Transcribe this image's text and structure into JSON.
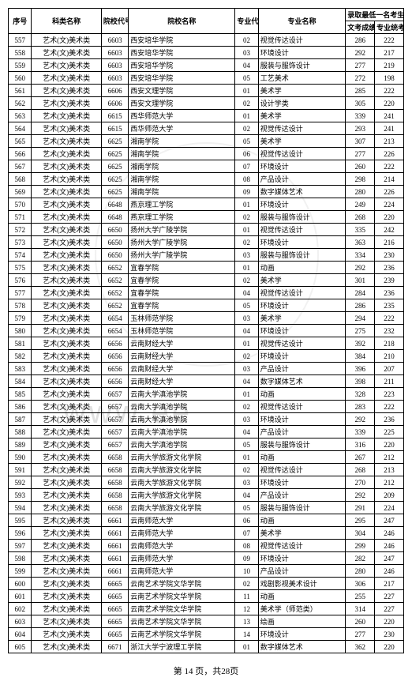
{
  "headers": {
    "seq": "序号",
    "category": "科类名称",
    "school_code": "院校代号",
    "school_name": "院校名称",
    "major_code": "专业代号",
    "major_name": "专业名称",
    "score_group": "录取最低一名考生",
    "score1": "文考成绩",
    "score2": "专业统考成绩"
  },
  "footer": "第 14 页，共28页",
  "category_label": "艺术(文)美术类",
  "rows": [
    {
      "seq": 557,
      "code": "6603",
      "school": "西安培华学院",
      "mcode": "02",
      "major": "视觉传达设计",
      "s1": 286,
      "s2": 222
    },
    {
      "seq": 558,
      "code": "6603",
      "school": "西安培华学院",
      "mcode": "03",
      "major": "环境设计",
      "s1": 292,
      "s2": 217
    },
    {
      "seq": 559,
      "code": "6603",
      "school": "西安培华学院",
      "mcode": "04",
      "major": "服装与服饰设计",
      "s1": 277,
      "s2": 219
    },
    {
      "seq": 560,
      "code": "6603",
      "school": "西安培华学院",
      "mcode": "05",
      "major": "工艺美术",
      "s1": 272,
      "s2": 198
    },
    {
      "seq": 561,
      "code": "6606",
      "school": "西安文理学院",
      "mcode": "01",
      "major": "美术学",
      "s1": 285,
      "s2": 222
    },
    {
      "seq": 562,
      "code": "6606",
      "school": "西安文理学院",
      "mcode": "02",
      "major": "设计学类",
      "s1": 305,
      "s2": 220
    },
    {
      "seq": 563,
      "code": "6615",
      "school": "西华师范大学",
      "mcode": "01",
      "major": "美术学",
      "s1": 339,
      "s2": 241
    },
    {
      "seq": 564,
      "code": "6615",
      "school": "西华师范大学",
      "mcode": "02",
      "major": "视觉传达设计",
      "s1": 293,
      "s2": 241
    },
    {
      "seq": 565,
      "code": "6625",
      "school": "湘南学院",
      "mcode": "05",
      "major": "美术学",
      "s1": 307,
      "s2": 213
    },
    {
      "seq": 566,
      "code": "6625",
      "school": "湘南学院",
      "mcode": "06",
      "major": "视觉传达设计",
      "s1": 277,
      "s2": 226
    },
    {
      "seq": 567,
      "code": "6625",
      "school": "湘南学院",
      "mcode": "07",
      "major": "环境设计",
      "s1": 260,
      "s2": 222
    },
    {
      "seq": 568,
      "code": "6625",
      "school": "湘南学院",
      "mcode": "08",
      "major": "产品设计",
      "s1": 298,
      "s2": 214
    },
    {
      "seq": 569,
      "code": "6625",
      "school": "湘南学院",
      "mcode": "09",
      "major": "数字媒体艺术",
      "s1": 280,
      "s2": 226
    },
    {
      "seq": 570,
      "code": "6648",
      "school": "燕京理工学院",
      "mcode": "01",
      "major": "环境设计",
      "s1": 249,
      "s2": 224
    },
    {
      "seq": 571,
      "code": "6648",
      "school": "燕京理工学院",
      "mcode": "02",
      "major": "服装与服饰设计",
      "s1": 268,
      "s2": 220
    },
    {
      "seq": 572,
      "code": "6650",
      "school": "扬州大学广陵学院",
      "mcode": "01",
      "major": "视觉传达设计",
      "s1": 335,
      "s2": 242
    },
    {
      "seq": 573,
      "code": "6650",
      "school": "扬州大学广陵学院",
      "mcode": "02",
      "major": "环境设计",
      "s1": 363,
      "s2": 216
    },
    {
      "seq": 574,
      "code": "6650",
      "school": "扬州大学广陵学院",
      "mcode": "03",
      "major": "服装与服饰设计",
      "s1": 334,
      "s2": 230
    },
    {
      "seq": 575,
      "code": "6652",
      "school": "宜春学院",
      "mcode": "01",
      "major": "动画",
      "s1": 292,
      "s2": 236
    },
    {
      "seq": 576,
      "code": "6652",
      "school": "宜春学院",
      "mcode": "02",
      "major": "美术学",
      "s1": 301,
      "s2": 239
    },
    {
      "seq": 577,
      "code": "6652",
      "school": "宜春学院",
      "mcode": "04",
      "major": "视觉传达设计",
      "s1": 284,
      "s2": 236
    },
    {
      "seq": 578,
      "code": "6652",
      "school": "宜春学院",
      "mcode": "05",
      "major": "环境设计",
      "s1": 286,
      "s2": 235
    },
    {
      "seq": 579,
      "code": "6654",
      "school": "玉林师范学院",
      "mcode": "03",
      "major": "美术学",
      "s1": 294,
      "s2": 222
    },
    {
      "seq": 580,
      "code": "6654",
      "school": "玉林师范学院",
      "mcode": "04",
      "major": "环境设计",
      "s1": 275,
      "s2": 232
    },
    {
      "seq": 581,
      "code": "6656",
      "school": "云南财经大学",
      "mcode": "01",
      "major": "视觉传达设计",
      "s1": 392,
      "s2": 218
    },
    {
      "seq": 582,
      "code": "6656",
      "school": "云南财经大学",
      "mcode": "02",
      "major": "环境设计",
      "s1": 384,
      "s2": 210
    },
    {
      "seq": 583,
      "code": "6656",
      "school": "云南财经大学",
      "mcode": "03",
      "major": "产品设计",
      "s1": 396,
      "s2": 207
    },
    {
      "seq": 584,
      "code": "6656",
      "school": "云南财经大学",
      "mcode": "04",
      "major": "数字媒体艺术",
      "s1": 398,
      "s2": 211
    },
    {
      "seq": 585,
      "code": "6657",
      "school": "云南大学滇池学院",
      "mcode": "01",
      "major": "动画",
      "s1": 328,
      "s2": 223
    },
    {
      "seq": 586,
      "code": "6657",
      "school": "云南大学滇池学院",
      "mcode": "02",
      "major": "视觉传达设计",
      "s1": 283,
      "s2": 222
    },
    {
      "seq": 587,
      "code": "6657",
      "school": "云南大学滇池学院",
      "mcode": "03",
      "major": "环境设计",
      "s1": 292,
      "s2": 236
    },
    {
      "seq": 588,
      "code": "6657",
      "school": "云南大学滇池学院",
      "mcode": "04",
      "major": "产品设计",
      "s1": 339,
      "s2": 225
    },
    {
      "seq": 589,
      "code": "6657",
      "school": "云南大学滇池学院",
      "mcode": "05",
      "major": "服装与服饰设计",
      "s1": 316,
      "s2": 220
    },
    {
      "seq": 590,
      "code": "6658",
      "school": "云南大学旅游文化学院",
      "mcode": "01",
      "major": "动画",
      "s1": 267,
      "s2": 212
    },
    {
      "seq": 591,
      "code": "6658",
      "school": "云南大学旅游文化学院",
      "mcode": "02",
      "major": "视觉传达设计",
      "s1": 268,
      "s2": 213
    },
    {
      "seq": 592,
      "code": "6658",
      "school": "云南大学旅游文化学院",
      "mcode": "03",
      "major": "环境设计",
      "s1": 270,
      "s2": 212
    },
    {
      "seq": 593,
      "code": "6658",
      "school": "云南大学旅游文化学院",
      "mcode": "04",
      "major": "产品设计",
      "s1": 292,
      "s2": 209
    },
    {
      "seq": 594,
      "code": "6658",
      "school": "云南大学旅游文化学院",
      "mcode": "05",
      "major": "服装与服饰设计",
      "s1": 291,
      "s2": 224
    },
    {
      "seq": 595,
      "code": "6661",
      "school": "云南师范大学",
      "mcode": "06",
      "major": "动画",
      "s1": 295,
      "s2": 247
    },
    {
      "seq": 596,
      "code": "6661",
      "school": "云南师范大学",
      "mcode": "07",
      "major": "美术学",
      "s1": 304,
      "s2": 246
    },
    {
      "seq": 597,
      "code": "6661",
      "school": "云南师范大学",
      "mcode": "08",
      "major": "视觉传达设计",
      "s1": 299,
      "s2": 246
    },
    {
      "seq": 598,
      "code": "6661",
      "school": "云南师范大学",
      "mcode": "09",
      "major": "环境设计",
      "s1": 282,
      "s2": 247
    },
    {
      "seq": 599,
      "code": "6661",
      "school": "云南师范大学",
      "mcode": "10",
      "major": "产品设计",
      "s1": 280,
      "s2": 246
    },
    {
      "seq": 600,
      "code": "6665",
      "school": "云南艺术学院文华学院",
      "mcode": "02",
      "major": "戏剧影视美术设计",
      "s1": 306,
      "s2": 217
    },
    {
      "seq": 601,
      "code": "6665",
      "school": "云南艺术学院文华学院",
      "mcode": "11",
      "major": "动画",
      "s1": 255,
      "s2": 227
    },
    {
      "seq": 602,
      "code": "6665",
      "school": "云南艺术学院文华学院",
      "mcode": "12",
      "major": "美术学（师范类）",
      "s1": 314,
      "s2": 227
    },
    {
      "seq": 603,
      "code": "6665",
      "school": "云南艺术学院文华学院",
      "mcode": "13",
      "major": "绘画",
      "s1": 260,
      "s2": 220
    },
    {
      "seq": 604,
      "code": "6665",
      "school": "云南艺术学院文华学院",
      "mcode": "14",
      "major": "环境设计",
      "s1": 277,
      "s2": 230
    },
    {
      "seq": 605,
      "code": "6671",
      "school": "浙江大学宁波理工学院",
      "mcode": "01",
      "major": "数字媒体艺术",
      "s1": 362,
      "s2": 220
    }
  ]
}
